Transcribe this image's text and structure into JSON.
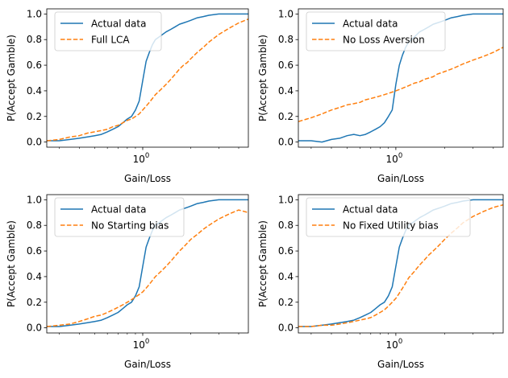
{
  "colors": {
    "actual": "#1f77b4",
    "model": "#ff7f0e",
    "axis": "#000000",
    "legend_border": "#cccccc",
    "background": "#ffffff"
  },
  "chart_data": [
    {
      "type": "line",
      "xlabel": "Gain/Loss",
      "ylabel": "P(Accept Gamble)",
      "xscale": "log",
      "xlim": [
        0.25,
        4.6
      ],
      "ylim": [
        -0.04,
        1.04
      ],
      "yticks": [
        0.0,
        0.2,
        0.4,
        0.6,
        0.8,
        1.0
      ],
      "ytick_labels": [
        "0.0",
        "0.2",
        "0.4",
        "0.6",
        "0.8",
        "1.0"
      ],
      "xtick_major": {
        "value": 1,
        "label_base": "10",
        "label_exp": "0"
      },
      "legend_position": "top-left",
      "grid": false,
      "series": [
        {
          "name": "Actual data",
          "style": "solid",
          "x": [
            0.25,
            0.3,
            0.35,
            0.4,
            0.45,
            0.5,
            0.55,
            0.6,
            0.65,
            0.7,
            0.75,
            0.8,
            0.85,
            0.9,
            0.95,
            1.0,
            1.05,
            1.1,
            1.15,
            1.2,
            1.3,
            1.4,
            1.5,
            1.6,
            1.7,
            1.8,
            1.9,
            2.0,
            2.2,
            2.4,
            2.6,
            3.0,
            3.5,
            4.0,
            4.6
          ],
          "y": [
            0.01,
            0.01,
            0.02,
            0.03,
            0.04,
            0.05,
            0.06,
            0.08,
            0.1,
            0.12,
            0.15,
            0.18,
            0.2,
            0.25,
            0.32,
            0.48,
            0.63,
            0.7,
            0.76,
            0.8,
            0.83,
            0.86,
            0.88,
            0.9,
            0.92,
            0.93,
            0.94,
            0.95,
            0.97,
            0.98,
            0.99,
            1.0,
            1.0,
            1.0,
            1.0
          ]
        },
        {
          "name": "Full LCA",
          "style": "dashed",
          "x": [
            0.25,
            0.3,
            0.35,
            0.4,
            0.45,
            0.5,
            0.55,
            0.6,
            0.65,
            0.7,
            0.75,
            0.8,
            0.85,
            0.9,
            0.95,
            1.0,
            1.05,
            1.1,
            1.15,
            1.2,
            1.3,
            1.4,
            1.5,
            1.6,
            1.7,
            1.8,
            1.9,
            2.0,
            2.2,
            2.4,
            2.6,
            3.0,
            3.5,
            4.0,
            4.6
          ],
          "y": [
            0.01,
            0.02,
            0.04,
            0.05,
            0.07,
            0.08,
            0.09,
            0.1,
            0.12,
            0.13,
            0.15,
            0.17,
            0.18,
            0.2,
            0.22,
            0.25,
            0.28,
            0.31,
            0.34,
            0.37,
            0.41,
            0.45,
            0.49,
            0.53,
            0.57,
            0.6,
            0.62,
            0.65,
            0.7,
            0.74,
            0.78,
            0.84,
            0.89,
            0.93,
            0.96
          ]
        }
      ]
    },
    {
      "type": "line",
      "xlabel": "Gain/Loss",
      "ylabel": "P(Accept Gamble)",
      "xscale": "log",
      "xlim": [
        0.25,
        4.6
      ],
      "ylim": [
        -0.04,
        1.04
      ],
      "yticks": [
        0.0,
        0.2,
        0.4,
        0.6,
        0.8,
        1.0
      ],
      "ytick_labels": [
        "0.0",
        "0.2",
        "0.4",
        "0.6",
        "0.8",
        "1.0"
      ],
      "xtick_major": {
        "value": 1,
        "label_base": "10",
        "label_exp": "0"
      },
      "legend_position": "top-left",
      "grid": false,
      "series": [
        {
          "name": "Actual data",
          "style": "solid",
          "x": [
            0.25,
            0.3,
            0.35,
            0.4,
            0.45,
            0.5,
            0.55,
            0.6,
            0.65,
            0.7,
            0.75,
            0.8,
            0.85,
            0.9,
            0.95,
            1.0,
            1.05,
            1.1,
            1.15,
            1.2,
            1.3,
            1.4,
            1.5,
            1.6,
            1.7,
            1.8,
            1.9,
            2.0,
            2.2,
            2.4,
            2.6,
            3.0,
            3.5,
            4.0,
            4.6
          ],
          "y": [
            0.01,
            0.01,
            0.0,
            0.02,
            0.03,
            0.05,
            0.06,
            0.05,
            0.06,
            0.08,
            0.1,
            0.12,
            0.15,
            0.2,
            0.25,
            0.45,
            0.6,
            0.68,
            0.74,
            0.78,
            0.82,
            0.86,
            0.88,
            0.9,
            0.92,
            0.93,
            0.94,
            0.95,
            0.97,
            0.98,
            0.99,
            1.0,
            1.0,
            1.0,
            1.0
          ]
        },
        {
          "name": "No Loss Aversion",
          "style": "dashed",
          "x": [
            0.25,
            0.3,
            0.35,
            0.4,
            0.45,
            0.5,
            0.55,
            0.6,
            0.65,
            0.7,
            0.75,
            0.8,
            0.85,
            0.9,
            0.95,
            1.0,
            1.05,
            1.1,
            1.15,
            1.2,
            1.3,
            1.4,
            1.5,
            1.6,
            1.7,
            1.8,
            1.9,
            2.0,
            2.2,
            2.4,
            2.6,
            3.0,
            3.5,
            4.0,
            4.6
          ],
          "y": [
            0.16,
            0.19,
            0.22,
            0.25,
            0.27,
            0.29,
            0.3,
            0.31,
            0.33,
            0.34,
            0.35,
            0.36,
            0.37,
            0.38,
            0.39,
            0.4,
            0.41,
            0.42,
            0.43,
            0.44,
            0.46,
            0.47,
            0.49,
            0.5,
            0.51,
            0.53,
            0.54,
            0.55,
            0.57,
            0.59,
            0.61,
            0.64,
            0.67,
            0.7,
            0.74
          ]
        }
      ]
    },
    {
      "type": "line",
      "xlabel": "Gain/Loss",
      "ylabel": "P(Accept Gamble)",
      "xscale": "log",
      "xlim": [
        0.25,
        4.6
      ],
      "ylim": [
        -0.04,
        1.04
      ],
      "yticks": [
        0.0,
        0.2,
        0.4,
        0.6,
        0.8,
        1.0
      ],
      "ytick_labels": [
        "0.0",
        "0.2",
        "0.4",
        "0.6",
        "0.8",
        "1.0"
      ],
      "xtick_major": {
        "value": 1,
        "label_base": "10",
        "label_exp": "0"
      },
      "legend_position": "top-left",
      "grid": false,
      "series": [
        {
          "name": "Actual data",
          "style": "solid",
          "x": [
            0.25,
            0.3,
            0.35,
            0.4,
            0.45,
            0.5,
            0.55,
            0.6,
            0.65,
            0.7,
            0.75,
            0.8,
            0.85,
            0.9,
            0.95,
            1.0,
            1.05,
            1.1,
            1.15,
            1.2,
            1.3,
            1.4,
            1.5,
            1.6,
            1.7,
            1.8,
            1.9,
            2.0,
            2.2,
            2.4,
            2.6,
            3.0,
            3.5,
            4.0,
            4.6
          ],
          "y": [
            0.01,
            0.01,
            0.02,
            0.03,
            0.04,
            0.05,
            0.06,
            0.08,
            0.1,
            0.12,
            0.15,
            0.18,
            0.2,
            0.25,
            0.32,
            0.48,
            0.63,
            0.7,
            0.76,
            0.8,
            0.83,
            0.86,
            0.88,
            0.9,
            0.92,
            0.93,
            0.94,
            0.95,
            0.97,
            0.98,
            0.99,
            1.0,
            1.0,
            1.0,
            1.0
          ]
        },
        {
          "name": "No Starting bias",
          "style": "dashed",
          "x": [
            0.25,
            0.3,
            0.35,
            0.4,
            0.45,
            0.5,
            0.55,
            0.6,
            0.65,
            0.7,
            0.75,
            0.8,
            0.85,
            0.9,
            0.95,
            1.0,
            1.05,
            1.1,
            1.15,
            1.2,
            1.3,
            1.4,
            1.5,
            1.6,
            1.7,
            1.8,
            1.9,
            2.0,
            2.2,
            2.4,
            2.6,
            3.0,
            3.5,
            4.0,
            4.6
          ],
          "y": [
            0.01,
            0.02,
            0.03,
            0.05,
            0.07,
            0.09,
            0.1,
            0.12,
            0.14,
            0.16,
            0.18,
            0.2,
            0.22,
            0.24,
            0.26,
            0.28,
            0.31,
            0.34,
            0.37,
            0.4,
            0.44,
            0.48,
            0.52,
            0.56,
            0.6,
            0.63,
            0.66,
            0.69,
            0.73,
            0.77,
            0.8,
            0.85,
            0.89,
            0.92,
            0.9
          ]
        }
      ]
    },
    {
      "type": "line",
      "xlabel": "Gain/Loss",
      "ylabel": "P(Accept Gamble)",
      "xscale": "log",
      "xlim": [
        0.25,
        4.6
      ],
      "ylim": [
        -0.04,
        1.04
      ],
      "yticks": [
        0.0,
        0.2,
        0.4,
        0.6,
        0.8,
        1.0
      ],
      "ytick_labels": [
        "0.0",
        "0.2",
        "0.4",
        "0.6",
        "0.8",
        "1.0"
      ],
      "xtick_major": {
        "value": 1,
        "label_base": "10",
        "label_exp": "0"
      },
      "legend_position": "top-left",
      "grid": false,
      "series": [
        {
          "name": "Actual data",
          "style": "solid",
          "x": [
            0.25,
            0.3,
            0.35,
            0.4,
            0.45,
            0.5,
            0.55,
            0.6,
            0.65,
            0.7,
            0.75,
            0.8,
            0.85,
            0.9,
            0.95,
            1.0,
            1.05,
            1.1,
            1.15,
            1.2,
            1.3,
            1.4,
            1.5,
            1.6,
            1.7,
            1.8,
            1.9,
            2.0,
            2.2,
            2.4,
            2.6,
            3.0,
            3.5,
            4.0,
            4.6
          ],
          "y": [
            0.01,
            0.01,
            0.02,
            0.03,
            0.04,
            0.05,
            0.06,
            0.08,
            0.1,
            0.12,
            0.15,
            0.18,
            0.2,
            0.25,
            0.32,
            0.48,
            0.63,
            0.7,
            0.76,
            0.8,
            0.83,
            0.86,
            0.88,
            0.9,
            0.92,
            0.93,
            0.94,
            0.95,
            0.97,
            0.98,
            0.99,
            1.0,
            1.0,
            1.0,
            1.0
          ]
        },
        {
          "name": "No Fixed Utility bias",
          "style": "dashed",
          "x": [
            0.25,
            0.3,
            0.35,
            0.4,
            0.45,
            0.5,
            0.55,
            0.6,
            0.65,
            0.7,
            0.75,
            0.8,
            0.85,
            0.9,
            0.95,
            1.0,
            1.05,
            1.1,
            1.15,
            1.2,
            1.3,
            1.4,
            1.5,
            1.6,
            1.7,
            1.8,
            1.9,
            2.0,
            2.2,
            2.4,
            2.6,
            3.0,
            3.5,
            4.0,
            4.6
          ],
          "y": [
            0.01,
            0.01,
            0.02,
            0.02,
            0.03,
            0.04,
            0.05,
            0.06,
            0.07,
            0.08,
            0.1,
            0.12,
            0.14,
            0.17,
            0.2,
            0.23,
            0.27,
            0.31,
            0.35,
            0.39,
            0.44,
            0.49,
            0.53,
            0.57,
            0.6,
            0.63,
            0.66,
            0.69,
            0.74,
            0.78,
            0.82,
            0.87,
            0.91,
            0.94,
            0.96
          ]
        }
      ]
    }
  ]
}
